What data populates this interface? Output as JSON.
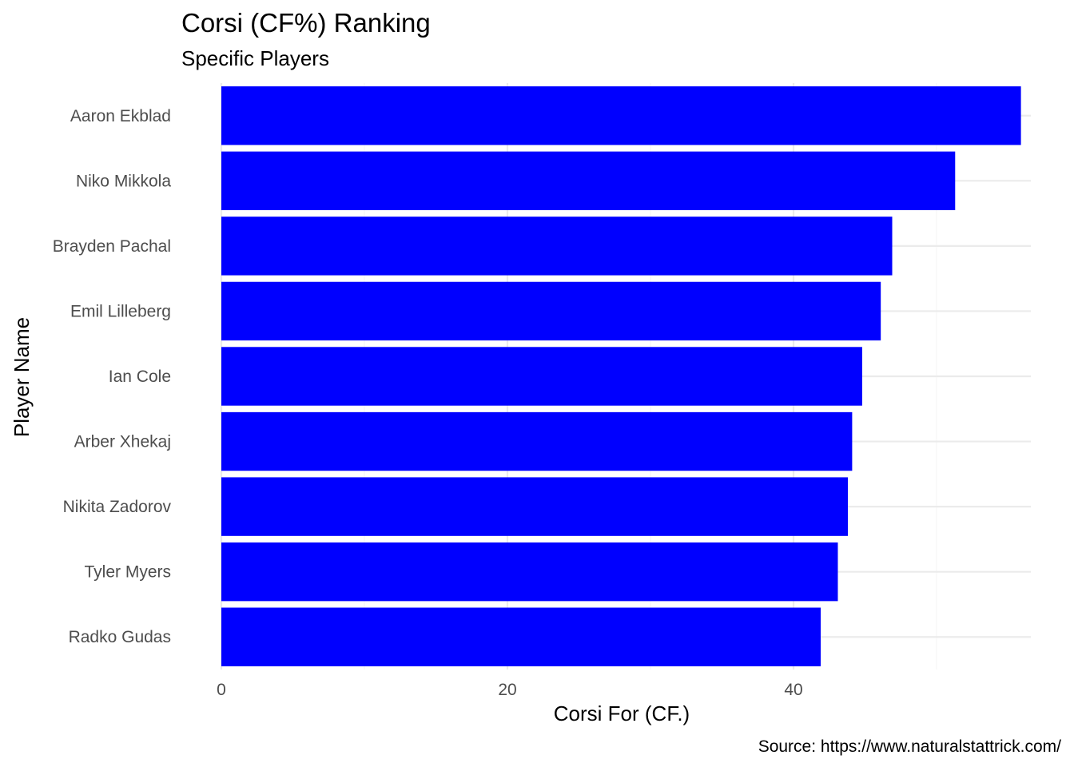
{
  "chart_data": {
    "type": "bar",
    "orientation": "horizontal",
    "title": "Corsi (CF%) Ranking",
    "subtitle": "Specific Players",
    "xlabel": "Corsi For (CF.)",
    "ylabel": "Player Name",
    "caption": "Source: https://www.naturalstattrick.com/",
    "categories": [
      "Aaron Ekblad",
      "Niko Mikkola",
      "Brayden Pachal",
      "Emil Lilleberg",
      "Ian Cole",
      "Arber Xhekaj",
      "Nikita Zadorov",
      "Tyler Myers",
      "Radko Gudas"
    ],
    "values": [
      55.9,
      51.3,
      46.9,
      46.1,
      44.8,
      44.1,
      43.8,
      43.1,
      41.9
    ],
    "x_ticks": [
      0,
      20,
      40
    ],
    "xlim": [
      0,
      56
    ],
    "bar_color": "#0000FF",
    "grid": true,
    "legend": "none"
  }
}
